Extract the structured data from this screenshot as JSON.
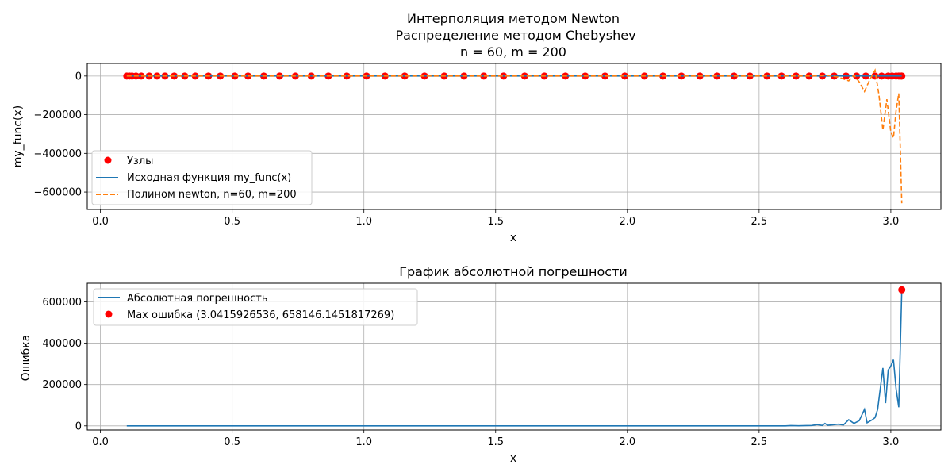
{
  "chart_data": [
    {
      "type": "line",
      "title_lines": [
        "Интерполяция методом Newton",
        "Распределение методом Chebyshev",
        "n = 60, m = 200"
      ],
      "xlabel": "x",
      "ylabel": "my_func(x)",
      "xlim": [
        -0.05,
        3.19
      ],
      "ylim": [
        -690000,
        65000
      ],
      "xticks": [
        0.0,
        0.5,
        1.0,
        1.5,
        2.0,
        2.5,
        3.0
      ],
      "xtick_labels": [
        "0.0",
        "0.5",
        "1.0",
        "1.5",
        "2.0",
        "2.5",
        "3.0"
      ],
      "yticks": [
        0,
        -200000,
        -400000,
        -600000
      ],
      "ytick_labels": [
        "0",
        "−200000",
        "−400000",
        "−600000"
      ],
      "grid": true,
      "legend_position": "lower-left",
      "series": [
        {
          "name": "Узлы",
          "kind": "scatter",
          "color": "#ff0000",
          "x": [
            0.1,
            0.11,
            0.12,
            0.135,
            0.155,
            0.185,
            0.215,
            0.245,
            0.28,
            0.32,
            0.36,
            0.41,
            0.455,
            0.51,
            0.56,
            0.62,
            0.68,
            0.74,
            0.8,
            0.865,
            0.935,
            1.01,
            1.08,
            1.155,
            1.23,
            1.305,
            1.38,
            1.455,
            1.53,
            1.61,
            1.685,
            1.765,
            1.84,
            1.915,
            1.99,
            2.065,
            2.135,
            2.205,
            2.275,
            2.34,
            2.405,
            2.465,
            2.53,
            2.585,
            2.64,
            2.69,
            2.74,
            2.785,
            2.83,
            2.87,
            2.905,
            2.94,
            2.965,
            2.99,
            3.005,
            3.02,
            3.03,
            3.035,
            3.04,
            3.0416
          ],
          "y": [
            0,
            0,
            0,
            0,
            0,
            0,
            0,
            0,
            0,
            0,
            0,
            0,
            0,
            0,
            0,
            0,
            0,
            0,
            0,
            0,
            0,
            0,
            0,
            0,
            0,
            0,
            0,
            0,
            0,
            0,
            0,
            0,
            0,
            0,
            0,
            0,
            0,
            0,
            0,
            0,
            0,
            0,
            0,
            0,
            0,
            0,
            0,
            0,
            0,
            0,
            0,
            0,
            0,
            0,
            0,
            0,
            0,
            0,
            0,
            0
          ]
        },
        {
          "name": "Исходная функция my_func(x)",
          "kind": "line",
          "color": "#1f77b4",
          "x": [
            0.1,
            3.0416
          ],
          "y": [
            0,
            0
          ]
        },
        {
          "name": "Полином newton, n=60, m=200",
          "kind": "dashed",
          "color": "#ff7f0e",
          "x": [
            0.1,
            2.6,
            2.7,
            2.76,
            2.8,
            2.84,
            2.86,
            2.88,
            2.9,
            2.92,
            2.94,
            2.955,
            2.97,
            2.985,
            3.0,
            3.01,
            3.02,
            3.03,
            3.0416
          ],
          "y": [
            0,
            0,
            0,
            3000,
            -5000,
            -25000,
            5000,
            -30000,
            -80000,
            -20000,
            30000,
            -100000,
            -280000,
            -120000,
            -290000,
            -320000,
            -180000,
            -90000,
            -658146
          ]
        }
      ]
    },
    {
      "type": "line",
      "title": "График абсолютной погрешности",
      "xlabel": "x",
      "ylabel": "Ошибка",
      "xlim": [
        -0.05,
        3.19
      ],
      "ylim": [
        -20000,
        690000
      ],
      "xticks": [
        0.0,
        0.5,
        1.0,
        1.5,
        2.0,
        2.5,
        3.0
      ],
      "xtick_labels": [
        "0.0",
        "0.5",
        "1.0",
        "1.5",
        "2.0",
        "2.5",
        "3.0"
      ],
      "yticks": [
        0,
        200000,
        400000,
        600000
      ],
      "ytick_labels": [
        "0",
        "200000",
        "400000",
        "600000"
      ],
      "grid": true,
      "legend_position": "upper-left",
      "series": [
        {
          "name": "Абсолютная погрешность",
          "kind": "line",
          "color": "#1f77b4",
          "x": [
            0.1,
            2.6,
            2.62,
            2.65,
            2.68,
            2.7,
            2.72,
            2.74,
            2.75,
            2.76,
            2.78,
            2.8,
            2.82,
            2.84,
            2.86,
            2.88,
            2.9,
            2.91,
            2.93,
            2.94,
            2.95,
            2.97,
            2.98,
            2.99,
            3.0,
            3.01,
            3.02,
            3.03,
            3.0416
          ],
          "y": [
            0,
            0,
            1500,
            500,
            1500,
            2000,
            6000,
            2000,
            12000,
            3000,
            5000,
            8000,
            4000,
            30000,
            12000,
            25000,
            80000,
            15000,
            30000,
            40000,
            80000,
            280000,
            110000,
            270000,
            290000,
            320000,
            180000,
            90000,
            658146
          ]
        },
        {
          "name": "Max ошибка (3.0415926536, 658146.1451817269)",
          "kind": "scatter",
          "color": "#ff0000",
          "x": [
            3.0415926536
          ],
          "y": [
            658146.1451817269
          ]
        }
      ]
    }
  ]
}
